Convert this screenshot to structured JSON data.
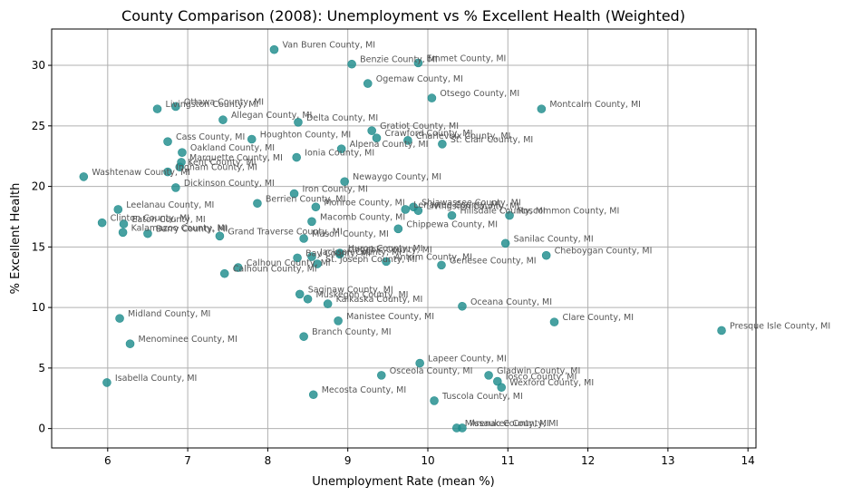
{
  "chart_data": {
    "type": "scatter",
    "title": "County Comparison (2008): Unemployment vs % Excellent Health (Weighted)",
    "xlabel": "Unemployment Rate (mean %)",
    "ylabel": "% Excellent Health",
    "xlim": [
      5.3,
      14.1
    ],
    "ylim": [
      -1.6,
      33.0
    ],
    "xticks": [
      6,
      7,
      8,
      9,
      10,
      11,
      12,
      13,
      14
    ],
    "yticks": [
      0,
      5,
      10,
      15,
      20,
      25,
      30
    ],
    "grid": true,
    "marker_color": "#1f8c8c",
    "points": [
      {
        "label": "Van Buren County, MI",
        "x": 8.08,
        "y": 31.3
      },
      {
        "label": "Benzie County, MI",
        "x": 9.05,
        "y": 30.1
      },
      {
        "label": "Emmet County, MI",
        "x": 9.88,
        "y": 30.2
      },
      {
        "label": "Ogemaw County, MI",
        "x": 9.25,
        "y": 28.5
      },
      {
        "label": "Otsego County, MI",
        "x": 10.05,
        "y": 27.3
      },
      {
        "label": "Montcalm County, MI",
        "x": 11.42,
        "y": 26.4
      },
      {
        "label": "Ottawa County, MI",
        "x": 6.85,
        "y": 26.6
      },
      {
        "label": "Livingston County, MI",
        "x": 6.62,
        "y": 26.4
      },
      {
        "label": "Allegan County, MI",
        "x": 7.44,
        "y": 25.5
      },
      {
        "label": "Delta County, MI",
        "x": 8.38,
        "y": 25.3
      },
      {
        "label": "Gratiot County, MI",
        "x": 9.3,
        "y": 24.6
      },
      {
        "label": "Crawford County, MI",
        "x": 9.36,
        "y": 24.0
      },
      {
        "label": "Charlevoix County, MI",
        "x": 9.75,
        "y": 23.8
      },
      {
        "label": "St. Clair County, MI",
        "x": 10.18,
        "y": 23.5
      },
      {
        "label": "Cass County, MI",
        "x": 6.75,
        "y": 23.7
      },
      {
        "label": "Houghton County, MI",
        "x": 7.8,
        "y": 23.9
      },
      {
        "label": "Alpena County, MI",
        "x": 8.92,
        "y": 23.1
      },
      {
        "label": "Oakland County, MI",
        "x": 6.93,
        "y": 22.8
      },
      {
        "label": "Ionia County, MI",
        "x": 8.36,
        "y": 22.4
      },
      {
        "label": "Marquette County, MI",
        "x": 6.92,
        "y": 22.0
      },
      {
        "label": "Kent County, MI",
        "x": 6.9,
        "y": 21.6
      },
      {
        "label": "Washtenaw County, MI",
        "x": 5.7,
        "y": 20.8
      },
      {
        "label": "Ingham County, MI",
        "x": 6.75,
        "y": 21.2
      },
      {
        "label": "Newaygo County, MI",
        "x": 8.96,
        "y": 20.4
      },
      {
        "label": "Dickinson County, MI",
        "x": 6.85,
        "y": 19.9
      },
      {
        "label": "Iron County, MI",
        "x": 8.33,
        "y": 19.4
      },
      {
        "label": "Berrien County, MI",
        "x": 7.87,
        "y": 18.6
      },
      {
        "label": "Monroe County, MI",
        "x": 8.6,
        "y": 18.3
      },
      {
        "label": "Shiawassee County, MI",
        "x": 9.82,
        "y": 18.3
      },
      {
        "label": "Lenawee County, MI",
        "x": 9.72,
        "y": 18.1
      },
      {
        "label": "Livingston County, MI",
        "x": 9.88,
        "y": 18.0
      },
      {
        "label": "Hillsdale County, MI",
        "x": 10.3,
        "y": 17.6
      },
      {
        "label": "Roscommon County, MI",
        "x": 11.02,
        "y": 17.6
      },
      {
        "label": "Leelanau County, MI",
        "x": 6.13,
        "y": 18.1
      },
      {
        "label": "Macomb County, MI",
        "x": 8.55,
        "y": 17.1
      },
      {
        "label": "Clinton County, MI",
        "x": 5.93,
        "y": 17.0
      },
      {
        "label": "Eaton County, MI",
        "x": 6.2,
        "y": 16.9
      },
      {
        "label": "Chippewa County, MI",
        "x": 9.63,
        "y": 16.5
      },
      {
        "label": "Kalamazoo County, MI",
        "x": 6.19,
        "y": 16.2
      },
      {
        "label": "Barry County, MI",
        "x": 6.5,
        "y": 16.1
      },
      {
        "label": "Grand Traverse County, MI",
        "x": 7.4,
        "y": 15.9
      },
      {
        "label": "Mason County, MI",
        "x": 8.45,
        "y": 15.7
      },
      {
        "label": "Sanilac County, MI",
        "x": 10.97,
        "y": 15.3
      },
      {
        "label": "Huron County, MI",
        "x": 8.9,
        "y": 14.5
      },
      {
        "label": "Gogebic County, MI",
        "x": 8.9,
        "y": 14.4
      },
      {
        "label": "Jackson County, MI",
        "x": 8.55,
        "y": 14.2
      },
      {
        "label": "Cheboygan County, MI",
        "x": 11.48,
        "y": 14.3
      },
      {
        "label": "Antrim County, MI",
        "x": 9.48,
        "y": 13.8
      },
      {
        "label": "Bay County, MI",
        "x": 8.37,
        "y": 14.1
      },
      {
        "label": "St. Joseph County, MI",
        "x": 8.62,
        "y": 13.6
      },
      {
        "label": "Genesee County, MI",
        "x": 10.17,
        "y": 13.5
      },
      {
        "label": "Calhoun County, MI",
        "x": 7.63,
        "y": 13.3
      },
      {
        "label": "Calhoun County, MI",
        "x": 7.46,
        "y": 12.8
      },
      {
        "label": "Saginaw County, MI",
        "x": 8.4,
        "y": 11.1
      },
      {
        "label": "Muskegon County, MI",
        "x": 8.5,
        "y": 10.7
      },
      {
        "label": "Kalkaska County, MI",
        "x": 8.75,
        "y": 10.3
      },
      {
        "label": "Oceana County, MI",
        "x": 10.43,
        "y": 10.1
      },
      {
        "label": "Midland County, MI",
        "x": 6.15,
        "y": 9.1
      },
      {
        "label": "Manistee County, MI",
        "x": 8.88,
        "y": 8.9
      },
      {
        "label": "Clare County, MI",
        "x": 11.58,
        "y": 8.8
      },
      {
        "label": "Presque Isle County, MI",
        "x": 13.67,
        "y": 8.1
      },
      {
        "label": "Branch County, MI",
        "x": 8.45,
        "y": 7.6
      },
      {
        "label": "Menominee County, MI",
        "x": 6.28,
        "y": 7.0
      },
      {
        "label": "Lapeer County, MI",
        "x": 9.9,
        "y": 5.4
      },
      {
        "label": "Osceola County, MI",
        "x": 9.42,
        "y": 4.4
      },
      {
        "label": "Gladwin County, MI",
        "x": 10.76,
        "y": 4.4
      },
      {
        "label": "Iosco County, MI",
        "x": 10.87,
        "y": 3.9
      },
      {
        "label": "Wexford County, MI",
        "x": 10.92,
        "y": 3.4
      },
      {
        "label": "Isabella County, MI",
        "x": 5.99,
        "y": 3.8
      },
      {
        "label": "Mecosta County, MI",
        "x": 8.57,
        "y": 2.8
      },
      {
        "label": "Tuscola County, MI",
        "x": 10.08,
        "y": 2.3
      },
      {
        "label": "Missaukee County, MI",
        "x": 10.36,
        "y": 0.05
      },
      {
        "label": "Arenac County, MI",
        "x": 10.43,
        "y": 0.05
      }
    ]
  }
}
